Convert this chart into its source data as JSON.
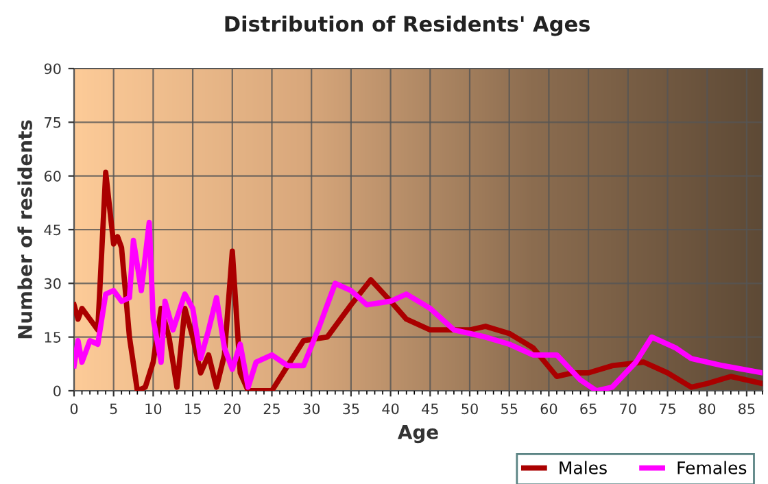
{
  "chart_data": {
    "type": "line",
    "title": "Distribution of Residents' Ages",
    "xlabel": "Age",
    "ylabel": "Number of residents",
    "xlim": [
      0,
      87
    ],
    "xticks": [
      0,
      5,
      10,
      15,
      20,
      25,
      30,
      35,
      40,
      45,
      50,
      55,
      60,
      65,
      70,
      75,
      80,
      85
    ],
    "ylim": [
      0,
      90
    ],
    "yticks": [
      0,
      15,
      30,
      45,
      60,
      75,
      90
    ],
    "grid": true,
    "legend": "bottom right",
    "line_style": "solid",
    "marker": "none",
    "series": [
      {
        "name": "Males",
        "color": "#aa0000",
        "x": [
          0,
          0.5,
          1,
          2,
          3,
          4,
          5,
          5.5,
          6,
          7,
          8,
          9,
          10,
          11,
          12,
          13,
          14,
          15,
          16,
          17,
          18,
          19,
          20,
          21,
          22,
          25,
          27,
          29,
          32,
          35,
          37.5,
          40,
          42,
          45,
          50,
          52,
          55,
          58,
          61,
          63,
          65,
          68,
          72,
          75,
          78,
          80,
          83,
          87
        ],
        "values": [
          24,
          20,
          23,
          20,
          17,
          61,
          41,
          43,
          40,
          15,
          0,
          1,
          8,
          23,
          15,
          1,
          23,
          15,
          5,
          10,
          1,
          10,
          39,
          5,
          0,
          0,
          7,
          14,
          15,
          24,
          31,
          25,
          20,
          17,
          17,
          18,
          16,
          12,
          4,
          5,
          5,
          7,
          8,
          5,
          1,
          2,
          4,
          2
        ]
      },
      {
        "name": "Females",
        "color": "#ff00ff",
        "x": [
          0,
          0.5,
          1,
          2,
          3,
          4,
          5,
          6,
          7,
          7.5,
          8.5,
          9.5,
          10,
          11,
          11.5,
          12.5,
          14,
          15,
          16,
          17,
          18,
          19,
          20,
          21,
          22,
          23,
          25,
          27,
          29,
          31,
          33,
          35,
          37,
          40,
          42,
          45,
          48,
          52,
          55,
          58,
          61,
          64,
          66,
          68,
          71,
          73,
          76,
          78,
          82,
          87
        ],
        "values": [
          7,
          14,
          8,
          14,
          13,
          27,
          28,
          25,
          26,
          42,
          28,
          47,
          20,
          8,
          25,
          17,
          27,
          23,
          9,
          17,
          26,
          12,
          6,
          13,
          1,
          8,
          10,
          7,
          7,
          18,
          30,
          28,
          24,
          25,
          27,
          23,
          17,
          15,
          13,
          10,
          10,
          3,
          0,
          1,
          8,
          15,
          12,
          9,
          7,
          5
        ]
      }
    ]
  }
}
